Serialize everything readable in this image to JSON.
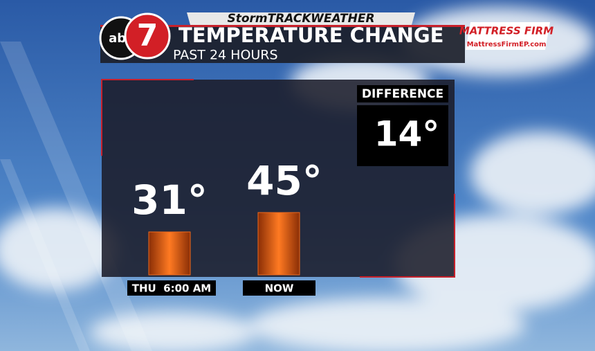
{
  "header": {
    "brand": "StormTRACKWEATHER",
    "logo": "abc",
    "logo_number": "7",
    "sponsor": "MATTRESS FIRM",
    "sponsor_url": "MattressFirmEP.com"
  },
  "chart_data": {
    "type": "bar",
    "title": "TEMPERATURE CHANGE",
    "subtitle": "PAST 24 HOURS",
    "categories": [
      "THU  6:00 AM",
      "NOW"
    ],
    "values": [
      31,
      45
    ],
    "value_labels": [
      "31°",
      "45°"
    ],
    "color": "#f06a1c",
    "difference": {
      "title": "DIFFERENCE",
      "value": 14,
      "value_label": "14°"
    }
  }
}
